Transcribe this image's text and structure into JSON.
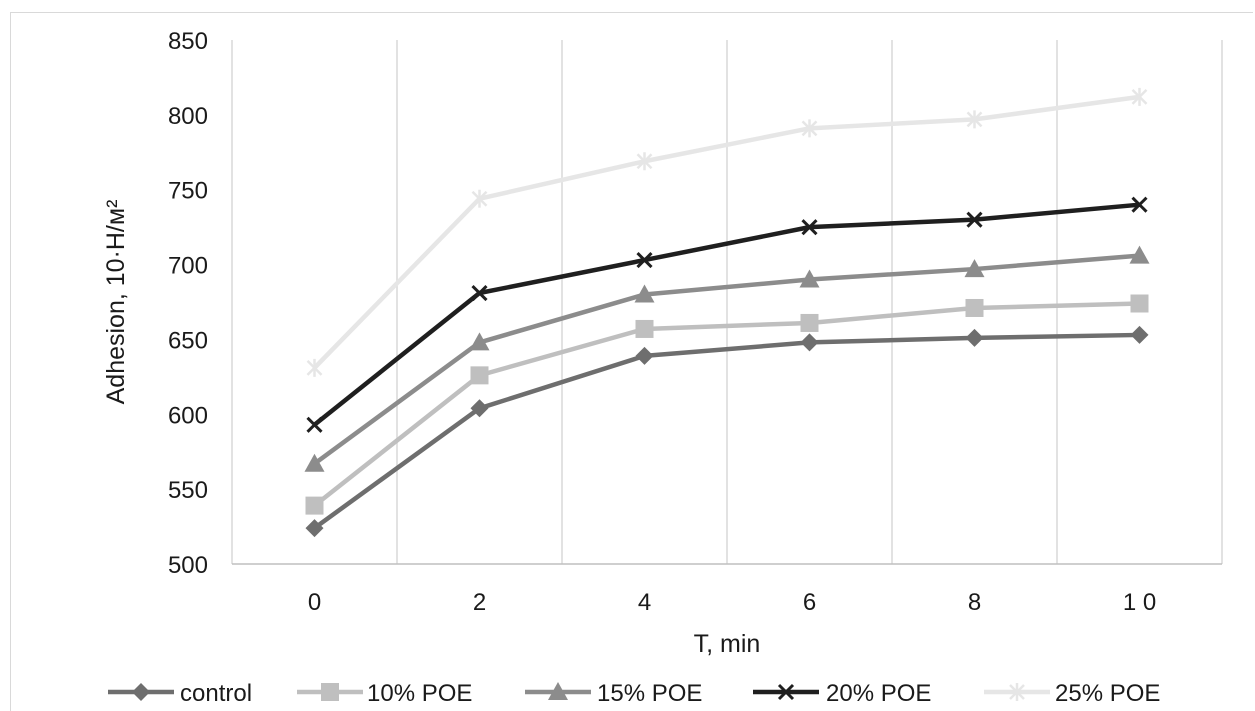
{
  "chart_data": {
    "type": "line",
    "xlabel": "T, min",
    "ylabel": "Adhesion, 10·Н/м²",
    "x_ticks": [
      "0",
      "2",
      "4",
      "6",
      "8",
      "1 0"
    ],
    "x": [
      0,
      2,
      4,
      6,
      8,
      10
    ],
    "y_ticks": [
      "500",
      "550",
      "600",
      "650",
      "700",
      "750",
      "800",
      "850"
    ],
    "ylim": [
      500,
      850
    ],
    "xlim": [
      -1,
      11
    ],
    "grid": "vertical",
    "legend_position": "bottom",
    "series": [
      {
        "name": "control",
        "values": [
          524,
          604,
          639,
          648,
          651,
          653
        ],
        "color": "#6e6e6e",
        "marker": "diamond"
      },
      {
        "name": "10% POE",
        "values": [
          539,
          626,
          657,
          661,
          671,
          674
        ],
        "color": "#bfbfbf",
        "marker": "square"
      },
      {
        "name": "15% POE",
        "values": [
          567,
          648,
          680,
          690,
          697,
          706
        ],
        "color": "#8c8c8c",
        "marker": "triangle"
      },
      {
        "name": "20% POE",
        "values": [
          593,
          681,
          703,
          725,
          730,
          740
        ],
        "color": "#1f1f1f",
        "marker": "x"
      },
      {
        "name": "25% POE",
        "values": [
          631,
          744,
          769,
          791,
          797,
          812
        ],
        "color": "#e6e6e6",
        "marker": "star"
      }
    ]
  }
}
